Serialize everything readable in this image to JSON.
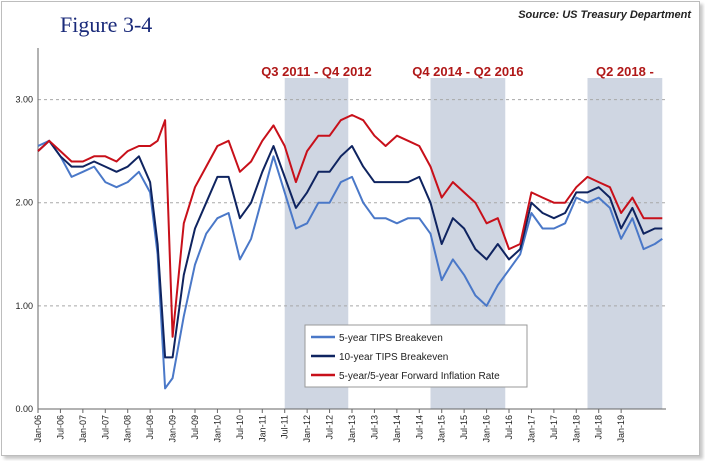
{
  "header": {
    "figure_label": "Figure 3-4",
    "source": "Source: US Treasury Department"
  },
  "colors": {
    "five_year": "#4a78c8",
    "ten_year": "#0f2460",
    "forward": "#c8101a",
    "shade": "#cfd6e2",
    "grid": "#a8a8a8",
    "period_label": "#b01818"
  },
  "chart_data": {
    "type": "line",
    "title": "",
    "xlabel": "",
    "ylabel": "",
    "ylim": [
      0,
      3.5
    ],
    "yticks": [
      "0.00",
      "1.00",
      "2.00",
      "3.00"
    ],
    "grid": "horizontal dashed",
    "legend_position": "bottom-center",
    "x_tick_labels": [
      "Jan-06",
      "Jul-06",
      "Jan-07",
      "Jul-07",
      "Jan-08",
      "Jul-08",
      "Jan-09",
      "Jul-09",
      "Jan-10",
      "Jul-10",
      "Jan-11",
      "Jul-11",
      "Jan-12",
      "Jul-12",
      "Jan-13",
      "Jul-13",
      "Jan-14",
      "Jul-14",
      "Jan-15",
      "Jul-15",
      "Jan-16",
      "Jul-16",
      "Jan-17",
      "Jul-17",
      "Jan-18",
      "Jul-18",
      "Jan-19"
    ],
    "x_start": "2006-01",
    "x_end": "2019-12",
    "shaded_periods": [
      {
        "label": "Q3 2011 - Q4 2012",
        "start": "2011-07",
        "end": "2012-12"
      },
      {
        "label": "Q4 2014 - Q2 2016",
        "start": "2014-10",
        "end": "2016-06"
      },
      {
        "label": "Q2 2018 -",
        "start": "2018-04",
        "end": "2019-12"
      }
    ],
    "x": [
      "2006-01",
      "2006-04",
      "2006-07",
      "2006-10",
      "2007-01",
      "2007-04",
      "2007-07",
      "2007-10",
      "2008-01",
      "2008-04",
      "2008-07",
      "2008-09",
      "2008-11",
      "2009-01",
      "2009-04",
      "2009-07",
      "2009-10",
      "2010-01",
      "2010-04",
      "2010-07",
      "2010-10",
      "2011-01",
      "2011-04",
      "2011-07",
      "2011-10",
      "2012-01",
      "2012-04",
      "2012-07",
      "2012-10",
      "2013-01",
      "2013-04",
      "2013-07",
      "2013-10",
      "2014-01",
      "2014-04",
      "2014-07",
      "2014-10",
      "2015-01",
      "2015-04",
      "2015-07",
      "2015-10",
      "2016-01",
      "2016-04",
      "2016-07",
      "2016-10",
      "2017-01",
      "2017-04",
      "2017-07",
      "2017-10",
      "2018-01",
      "2018-04",
      "2018-07",
      "2018-10",
      "2019-01",
      "2019-04",
      "2019-07",
      "2019-10",
      "2019-12"
    ],
    "series": [
      {
        "name": "5-year TIPS Breakeven",
        "values": [
          2.55,
          2.6,
          2.45,
          2.25,
          2.3,
          2.35,
          2.2,
          2.15,
          2.2,
          2.3,
          2.1,
          1.5,
          0.2,
          0.3,
          0.9,
          1.4,
          1.7,
          1.85,
          1.9,
          1.45,
          1.65,
          2.05,
          2.45,
          2.1,
          1.75,
          1.8,
          2.0,
          2.0,
          2.2,
          2.25,
          2.0,
          1.85,
          1.85,
          1.8,
          1.85,
          1.85,
          1.7,
          1.25,
          1.45,
          1.3,
          1.1,
          1.0,
          1.2,
          1.35,
          1.5,
          1.9,
          1.75,
          1.75,
          1.8,
          2.05,
          2.0,
          2.05,
          1.95,
          1.65,
          1.85,
          1.55,
          1.6,
          1.65
        ]
      },
      {
        "name": "10-year TIPS Breakeven",
        "values": [
          2.5,
          2.6,
          2.45,
          2.35,
          2.35,
          2.4,
          2.35,
          2.3,
          2.35,
          2.45,
          2.2,
          1.6,
          0.5,
          0.5,
          1.3,
          1.75,
          2.0,
          2.25,
          2.25,
          1.85,
          2.0,
          2.3,
          2.55,
          2.25,
          1.95,
          2.1,
          2.3,
          2.3,
          2.45,
          2.55,
          2.35,
          2.2,
          2.2,
          2.2,
          2.2,
          2.25,
          2.0,
          1.6,
          1.85,
          1.75,
          1.55,
          1.45,
          1.6,
          1.45,
          1.55,
          2.0,
          1.9,
          1.85,
          1.9,
          2.1,
          2.1,
          2.15,
          2.05,
          1.75,
          1.95,
          1.7,
          1.75,
          1.75
        ]
      },
      {
        "name": "5-year/5-year Forward Inflation Rate",
        "values": [
          2.5,
          2.6,
          2.5,
          2.4,
          2.4,
          2.45,
          2.45,
          2.4,
          2.5,
          2.55,
          2.55,
          2.6,
          2.8,
          0.7,
          1.8,
          2.15,
          2.35,
          2.55,
          2.6,
          2.3,
          2.4,
          2.6,
          2.75,
          2.55,
          2.2,
          2.5,
          2.65,
          2.65,
          2.8,
          2.85,
          2.8,
          2.65,
          2.55,
          2.65,
          2.6,
          2.55,
          2.35,
          2.05,
          2.2,
          2.1,
          2.0,
          1.8,
          1.85,
          1.55,
          1.6,
          2.1,
          2.05,
          2.0,
          2.0,
          2.15,
          2.25,
          2.2,
          2.15,
          1.9,
          2.05,
          1.85,
          1.85,
          1.85
        ]
      }
    ]
  }
}
